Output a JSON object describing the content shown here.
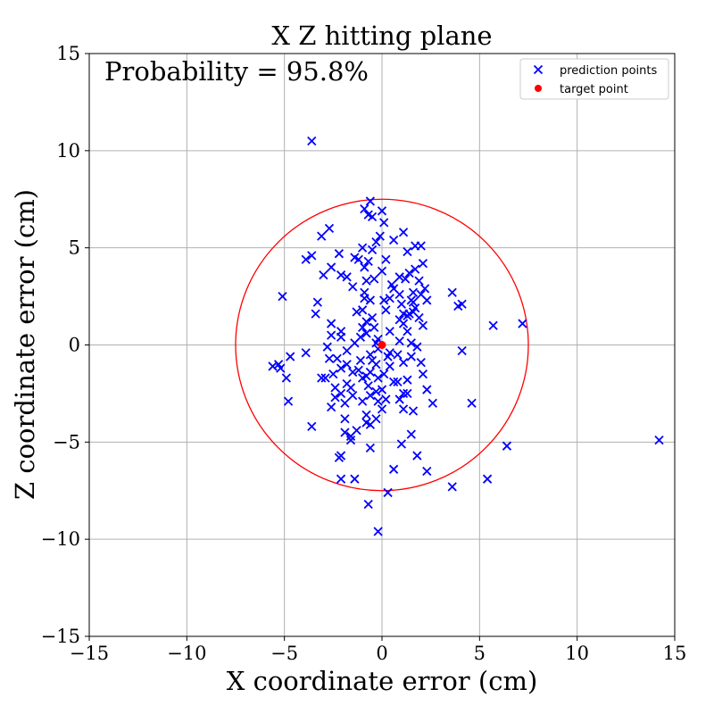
{
  "chart_data": {
    "type": "scatter",
    "title": "X Z hitting plane",
    "xlabel": "X coordinate error (cm)",
    "ylabel": "Z coordinate error (cm)",
    "xlim": [
      -15,
      15
    ],
    "ylim": [
      -15,
      15
    ],
    "x_ticks": [
      -15,
      -10,
      -5,
      0,
      5,
      10,
      15
    ],
    "y_ticks": [
      -15,
      -10,
      -5,
      0,
      5,
      10,
      15
    ],
    "x_tick_labels": [
      "−15",
      "−10",
      "−5",
      "0",
      "5",
      "10",
      "15"
    ],
    "y_tick_labels": [
      "−15",
      "−10",
      "−5",
      "0",
      "5",
      "10",
      "15"
    ],
    "grid": true,
    "legend_position": "top-right",
    "annotation": "Probability = 95.8%",
    "circle": {
      "center": [
        0,
        0
      ],
      "radius": 7.5,
      "color": "#ff0000"
    },
    "series": [
      {
        "name": "prediction points",
        "marker": "x",
        "color": "#0000ff",
        "points": [
          [
            -3.6,
            10.5
          ],
          [
            -0.6,
            7.4
          ],
          [
            -0.9,
            7.0
          ],
          [
            0.0,
            6.9
          ],
          [
            -0.7,
            6.7
          ],
          [
            -0.5,
            6.6
          ],
          [
            0.1,
            6.3
          ],
          [
            -2.7,
            6.0
          ],
          [
            -3.1,
            5.6
          ],
          [
            1.1,
            5.8
          ],
          [
            -0.1,
            5.6
          ],
          [
            0.6,
            5.4
          ],
          [
            -0.3,
            5.3
          ],
          [
            1.7,
            5.1
          ],
          [
            2.0,
            5.1
          ],
          [
            -1.0,
            5.0
          ],
          [
            -0.5,
            4.9
          ],
          [
            1.3,
            4.8
          ],
          [
            -2.2,
            4.7
          ],
          [
            -3.6,
            4.6
          ],
          [
            -3.9,
            4.4
          ],
          [
            -1.4,
            4.5
          ],
          [
            -1.2,
            4.4
          ],
          [
            0.2,
            4.4
          ],
          [
            -0.7,
            4.3
          ],
          [
            2.1,
            4.2
          ],
          [
            -2.6,
            4.0
          ],
          [
            -0.9,
            4.0
          ],
          [
            1.7,
            3.9
          ],
          [
            0.0,
            3.8
          ],
          [
            1.4,
            3.7
          ],
          [
            -3.0,
            3.6
          ],
          [
            -2.1,
            3.6
          ],
          [
            -1.8,
            3.5
          ],
          [
            0.9,
            3.5
          ],
          [
            1.2,
            3.4
          ],
          [
            -0.4,
            3.4
          ],
          [
            1.9,
            3.3
          ],
          [
            -0.8,
            3.3
          ],
          [
            0.5,
            3.1
          ],
          [
            -1.5,
            3.0
          ],
          [
            0.6,
            2.9
          ],
          [
            2.2,
            2.9
          ],
          [
            -0.9,
            2.7
          ],
          [
            1.6,
            2.7
          ],
          [
            3.6,
            2.7
          ],
          [
            2.0,
            2.6
          ],
          [
            0.9,
            2.6
          ],
          [
            -5.1,
            2.5
          ],
          [
            -0.9,
            2.4
          ],
          [
            0.4,
            2.4
          ],
          [
            -0.6,
            2.3
          ],
          [
            1.5,
            2.3
          ],
          [
            2.3,
            2.3
          ],
          [
            0.1,
            2.3
          ],
          [
            1.6,
            2.2
          ],
          [
            -3.3,
            2.2
          ],
          [
            1.0,
            2.1
          ],
          [
            4.1,
            2.1
          ],
          [
            3.9,
            2.0
          ],
          [
            1.7,
            1.9
          ],
          [
            0.2,
            1.8
          ],
          [
            1.6,
            1.7
          ],
          [
            -1.3,
            1.7
          ],
          [
            -1.0,
            1.8
          ],
          [
            -3.4,
            1.6
          ],
          [
            1.1,
            1.6
          ],
          [
            1.3,
            1.5
          ],
          [
            1.4,
            1.6
          ],
          [
            1.9,
            1.4
          ],
          [
            -0.5,
            1.4
          ],
          [
            0.9,
            1.3
          ],
          [
            1.1,
            1.1
          ],
          [
            -0.8,
            1.2
          ],
          [
            -2.6,
            1.1
          ],
          [
            2.1,
            1.0
          ],
          [
            5.7,
            1.0
          ],
          [
            7.2,
            1.1
          ],
          [
            -1.0,
            0.9
          ],
          [
            -0.4,
            0.9
          ],
          [
            -2.1,
            0.7
          ],
          [
            0.4,
            0.7
          ],
          [
            1.3,
            0.7
          ],
          [
            -0.8,
            0.6
          ],
          [
            -2.6,
            0.5
          ],
          [
            -1.1,
            0.4
          ],
          [
            -2.1,
            0.4
          ],
          [
            -0.2,
            0.3
          ],
          [
            0.9,
            0.2
          ],
          [
            1.5,
            0.1
          ],
          [
            -0.3,
            0.1
          ],
          [
            -1.4,
            0.1
          ],
          [
            -2.8,
            -0.1
          ],
          [
            1.8,
            -0.1
          ],
          [
            -0.2,
            -0.2
          ],
          [
            4.1,
            -0.3
          ],
          [
            -1.8,
            -0.3
          ],
          [
            -3.9,
            -0.4
          ],
          [
            0.4,
            -0.4
          ],
          [
            0.8,
            -0.5
          ],
          [
            -0.6,
            -0.5
          ],
          [
            -4.7,
            -0.6
          ],
          [
            0.3,
            -0.6
          ],
          [
            1.5,
            -0.6
          ],
          [
            -2.3,
            -0.7
          ],
          [
            -2.7,
            -0.7
          ],
          [
            -1.1,
            -0.8
          ],
          [
            -0.5,
            -0.8
          ],
          [
            1.1,
            -0.9
          ],
          [
            2.0,
            -0.9
          ],
          [
            -1.8,
            -1.0
          ],
          [
            -0.3,
            -1.0
          ],
          [
            -5.6,
            -1.1
          ],
          [
            -5.3,
            -1.0
          ],
          [
            -5.2,
            -1.2
          ],
          [
            0.4,
            -1.1
          ],
          [
            -2.1,
            -1.2
          ],
          [
            -1.2,
            -1.3
          ],
          [
            -1.5,
            -1.4
          ],
          [
            -0.6,
            -1.4
          ],
          [
            -2.5,
            -1.5
          ],
          [
            0.1,
            -1.5
          ],
          [
            -0.8,
            -1.6
          ],
          [
            -1.0,
            -1.7
          ],
          [
            -4.9,
            -1.7
          ],
          [
            -2.9,
            -1.7
          ],
          [
            -3.1,
            -1.7
          ],
          [
            2.1,
            -1.5
          ],
          [
            -0.2,
            -1.7
          ],
          [
            1.3,
            -1.8
          ],
          [
            0.8,
            -1.9
          ],
          [
            0.6,
            -1.9
          ],
          [
            -1.8,
            -2.0
          ],
          [
            -0.7,
            -2.1
          ],
          [
            -1.6,
            -2.2
          ],
          [
            -2.4,
            -2.2
          ],
          [
            0.0,
            -2.3
          ],
          [
            2.3,
            -2.3
          ],
          [
            -0.3,
            -2.4
          ],
          [
            1.1,
            -2.5
          ],
          [
            1.3,
            -2.5
          ],
          [
            -2.1,
            -2.5
          ],
          [
            -0.6,
            -2.6
          ],
          [
            -1.5,
            -2.6
          ],
          [
            -2.4,
            -2.7
          ],
          [
            0.2,
            -2.8
          ],
          [
            0.9,
            -2.8
          ],
          [
            -0.2,
            -2.9
          ],
          [
            -4.8,
            -2.9
          ],
          [
            -1.0,
            -2.9
          ],
          [
            -1.9,
            -3.0
          ],
          [
            2.6,
            -3.0
          ],
          [
            4.6,
            -3.0
          ],
          [
            -2.6,
            -3.2
          ],
          [
            0.0,
            -3.3
          ],
          [
            1.1,
            -3.3
          ],
          [
            1.6,
            -3.4
          ],
          [
            -0.8,
            -3.6
          ],
          [
            -1.9,
            -3.8
          ],
          [
            -0.3,
            -3.8
          ],
          [
            -0.8,
            -4.0
          ],
          [
            -0.6,
            -4.1
          ],
          [
            -3.6,
            -4.2
          ],
          [
            -1.3,
            -4.4
          ],
          [
            -1.9,
            -4.5
          ],
          [
            -1.6,
            -4.7
          ],
          [
            1.5,
            -4.6
          ],
          [
            -1.6,
            -4.9
          ],
          [
            1.0,
            -5.1
          ],
          [
            -0.6,
            -5.3
          ],
          [
            6.4,
            -5.2
          ],
          [
            14.2,
            -4.9
          ],
          [
            -2.1,
            -5.7
          ],
          [
            1.8,
            -5.7
          ],
          [
            -2.2,
            -5.8
          ],
          [
            0.6,
            -6.4
          ],
          [
            2.3,
            -6.5
          ],
          [
            -1.4,
            -6.9
          ],
          [
            -2.1,
            -6.9
          ],
          [
            5.4,
            -6.9
          ],
          [
            3.6,
            -7.3
          ],
          [
            0.3,
            -7.6
          ],
          [
            -0.7,
            -8.2
          ],
          [
            -0.2,
            -9.6
          ]
        ]
      },
      {
        "name": "target point",
        "marker": "o",
        "color": "#ff0000",
        "points": [
          [
            0,
            0
          ]
        ]
      }
    ]
  }
}
